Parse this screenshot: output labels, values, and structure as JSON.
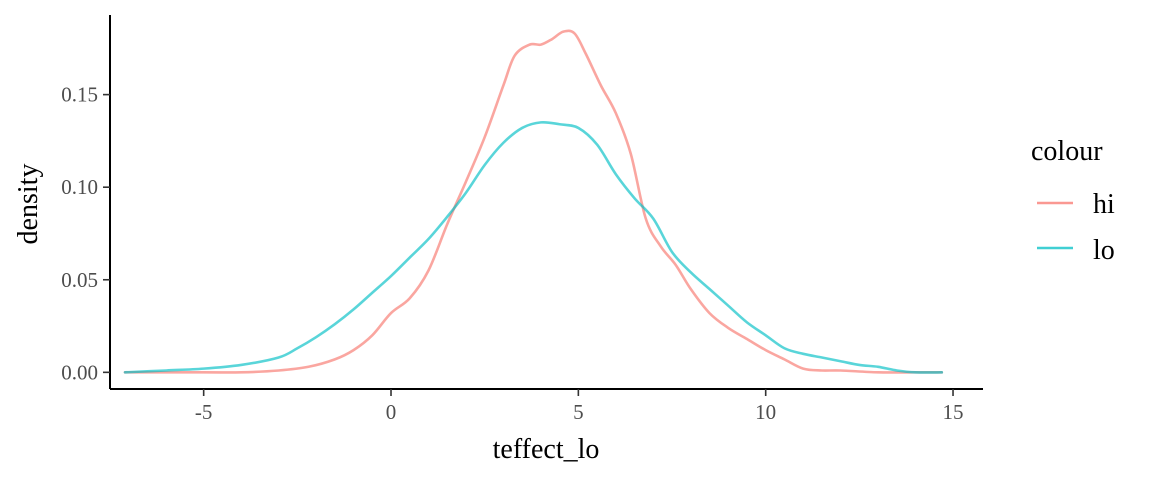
{
  "chart_data": {
    "type": "line",
    "xlabel": "teffect_lo",
    "ylabel": "density",
    "xlim": [
      -7.5,
      15.8
    ],
    "ylim": [
      -0.009,
      0.193
    ],
    "xticks": [
      -5,
      0,
      5,
      10,
      15
    ],
    "xtick_labels": [
      "-5",
      "0",
      "5",
      "10",
      "15"
    ],
    "yticks": [
      0.0,
      0.05,
      0.1,
      0.15
    ],
    "ytick_labels": [
      "0.00",
      "0.05",
      "0.10",
      "0.15"
    ],
    "grid": false,
    "legend": {
      "title": "colour",
      "position": "right"
    },
    "series": [
      {
        "name": "hi",
        "color": "#F8766D",
        "x": [
          -7.1,
          -5,
          -4,
          -3,
          -2.2,
          -1.5,
          -1,
          -0.5,
          0,
          0.5,
          1,
          1.5,
          2,
          2.5,
          3,
          3.3,
          3.7,
          4,
          4.3,
          4.6,
          4.9,
          5.2,
          5.6,
          6,
          6.4,
          6.8,
          7.2,
          7.6,
          8,
          8.5,
          9,
          9.5,
          10,
          10.5,
          11,
          11.5,
          12,
          13,
          14,
          14.7
        ],
        "values": [
          0.0,
          0.0,
          0.0,
          0.001,
          0.003,
          0.007,
          0.012,
          0.02,
          0.032,
          0.04,
          0.055,
          0.08,
          0.103,
          0.127,
          0.155,
          0.171,
          0.177,
          0.177,
          0.18,
          0.184,
          0.183,
          0.172,
          0.155,
          0.14,
          0.118,
          0.083,
          0.068,
          0.058,
          0.045,
          0.032,
          0.024,
          0.018,
          0.012,
          0.007,
          0.002,
          0.001,
          0.001,
          0.0,
          0.0,
          0.0
        ]
      },
      {
        "name": "lo",
        "color": "#00BFC4",
        "x": [
          -7.1,
          -6,
          -5,
          -4,
          -3,
          -2.5,
          -2,
          -1.5,
          -1,
          -0.5,
          0,
          0.5,
          1,
          1.5,
          2,
          2.5,
          3,
          3.5,
          4,
          4.5,
          5,
          5.5,
          6,
          6.5,
          7,
          7.5,
          8,
          8.5,
          9,
          9.5,
          10,
          10.5,
          11,
          11.5,
          12,
          12.5,
          13,
          13.5,
          14,
          14.7
        ],
        "values": [
          0.0,
          0.001,
          0.002,
          0.004,
          0.008,
          0.013,
          0.019,
          0.026,
          0.034,
          0.043,
          0.052,
          0.062,
          0.072,
          0.084,
          0.097,
          0.112,
          0.124,
          0.132,
          0.135,
          0.134,
          0.132,
          0.123,
          0.107,
          0.094,
          0.083,
          0.065,
          0.054,
          0.045,
          0.036,
          0.027,
          0.02,
          0.013,
          0.01,
          0.008,
          0.006,
          0.004,
          0.003,
          0.001,
          0.0,
          0.0
        ]
      }
    ]
  }
}
